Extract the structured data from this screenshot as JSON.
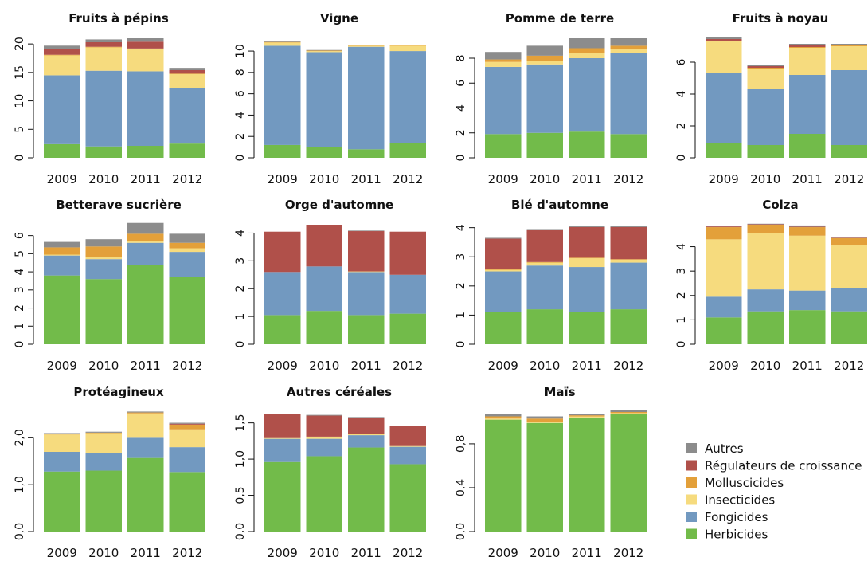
{
  "colors": {
    "Autres": "#8c8c8c",
    "Régulateurs de croissance": "#b0504a",
    "Molluscicides": "#e3a03a",
    "Insecticides": "#f6db7e",
    "Fongicides": "#7299c0",
    "Herbicides": "#72bb4a"
  },
  "legend": [
    "Autres",
    "Régulateurs de croissance",
    "Molluscicides",
    "Insecticides",
    "Fongicides",
    "Herbicides"
  ],
  "chart_data": [
    {
      "type": "bar",
      "stacked": true,
      "title": "Fruits à pépins",
      "categories": [
        "2009",
        "2010",
        "2011",
        "2012"
      ],
      "ylim": [
        0,
        21
      ],
      "yticks": [
        "0",
        "5",
        "10",
        "15",
        "20"
      ],
      "ytick_values": [
        0,
        5,
        10,
        15,
        20
      ],
      "series": [
        {
          "name": "Herbicides",
          "values": [
            2.4,
            2.0,
            2.1,
            2.5
          ]
        },
        {
          "name": "Fongicides",
          "values": [
            12.1,
            13.3,
            13.1,
            9.8
          ]
        },
        {
          "name": "Insecticides",
          "values": [
            3.5,
            4.1,
            3.9,
            2.4
          ]
        },
        {
          "name": "Molluscicides",
          "values": [
            0.1,
            0.1,
            0.1,
            0.1
          ]
        },
        {
          "name": "Régulateurs de croissance",
          "values": [
            1.0,
            0.8,
            1.2,
            0.6
          ]
        },
        {
          "name": "Autres",
          "values": [
            0.6,
            0.5,
            0.6,
            0.4
          ]
        }
      ]
    },
    {
      "type": "bar",
      "stacked": true,
      "title": "Vigne",
      "categories": [
        "2009",
        "2010",
        "2011",
        "2012"
      ],
      "ylim": [
        0,
        11.2
      ],
      "yticks": [
        "0",
        "2",
        "4",
        "6",
        "8",
        "10"
      ],
      "ytick_values": [
        0,
        2,
        4,
        6,
        8,
        10
      ],
      "series": [
        {
          "name": "Herbicides",
          "values": [
            1.2,
            1.0,
            0.8,
            1.4
          ]
        },
        {
          "name": "Fongicides",
          "values": [
            9.3,
            8.9,
            9.6,
            8.6
          ]
        },
        {
          "name": "Insecticides",
          "values": [
            0.3,
            0.1,
            0.1,
            0.5
          ]
        },
        {
          "name": "Molluscicides",
          "values": [
            0.05,
            0.05,
            0.05,
            0.05
          ]
        },
        {
          "name": "Régulateurs de croissance",
          "values": [
            0,
            0,
            0,
            0
          ]
        },
        {
          "name": "Autres",
          "values": [
            0.05,
            0.05,
            0.05,
            0.05
          ]
        }
      ]
    },
    {
      "type": "bar",
      "stacked": true,
      "title": "Pomme de terre",
      "categories": [
        "2009",
        "2010",
        "2011",
        "2012"
      ],
      "ylim": [
        0,
        9.6
      ],
      "yticks": [
        "0",
        "2",
        "4",
        "6",
        "8"
      ],
      "ytick_values": [
        0,
        2,
        4,
        6,
        8
      ],
      "series": [
        {
          "name": "Herbicides",
          "values": [
            1.9,
            2.0,
            2.1,
            1.9
          ]
        },
        {
          "name": "Fongicides",
          "values": [
            5.4,
            5.5,
            5.9,
            6.5
          ]
        },
        {
          "name": "Insecticides",
          "values": [
            0.4,
            0.3,
            0.4,
            0.3
          ]
        },
        {
          "name": "Molluscicides",
          "values": [
            0.2,
            0.4,
            0.4,
            0.3
          ]
        },
        {
          "name": "Régulateurs de croissance",
          "values": [
            0,
            0,
            0,
            0
          ]
        },
        {
          "name": "Autres",
          "values": [
            0.6,
            0.8,
            0.8,
            0.6
          ]
        }
      ]
    },
    {
      "type": "bar",
      "stacked": true,
      "title": "Fruits à noyau",
      "categories": [
        "2009",
        "2010",
        "2011",
        "2012"
      ],
      "ylim": [
        0,
        7.5
      ],
      "yticks": [
        "0",
        "2",
        "4",
        "6"
      ],
      "ytick_values": [
        0,
        2,
        4,
        6
      ],
      "series": [
        {
          "name": "Herbicides",
          "values": [
            0.9,
            0.8,
            1.5,
            0.8
          ]
        },
        {
          "name": "Fongicides",
          "values": [
            4.4,
            3.5,
            3.7,
            4.7
          ]
        },
        {
          "name": "Insecticides",
          "values": [
            2.0,
            1.3,
            1.7,
            1.5
          ]
        },
        {
          "name": "Molluscicides",
          "values": [
            0.05,
            0.05,
            0.05,
            0.05
          ]
        },
        {
          "name": "Régulateurs de croissance",
          "values": [
            0.1,
            0.1,
            0.1,
            0.05
          ]
        },
        {
          "name": "Autres",
          "values": [
            0.1,
            0.05,
            0.1,
            0.05
          ]
        }
      ]
    },
    {
      "type": "bar",
      "stacked": true,
      "title": "Betterave sucrière",
      "categories": [
        "2009",
        "2010",
        "2011",
        "2012"
      ],
      "ylim": [
        0,
        6.6
      ],
      "yticks": [
        "0",
        "1",
        "2",
        "3",
        "4",
        "5",
        "6"
      ],
      "ytick_values": [
        0,
        1,
        2,
        3,
        4,
        5,
        6
      ],
      "series": [
        {
          "name": "Herbicides",
          "values": [
            3.8,
            3.6,
            4.4,
            3.7
          ]
        },
        {
          "name": "Fongicides",
          "values": [
            1.1,
            1.1,
            1.2,
            1.4
          ]
        },
        {
          "name": "Insecticides",
          "values": [
            0.05,
            0.1,
            0.1,
            0.2
          ]
        },
        {
          "name": "Molluscicides",
          "values": [
            0.4,
            0.6,
            0.4,
            0.3
          ]
        },
        {
          "name": "Régulateurs de croissance",
          "values": [
            0,
            0,
            0,
            0
          ]
        },
        {
          "name": "Autres",
          "values": [
            0.3,
            0.4,
            0.6,
            0.5
          ]
        }
      ]
    },
    {
      "type": "bar",
      "stacked": true,
      "title": "Orge d'automne",
      "categories": [
        "2009",
        "2010",
        "2011",
        "2012"
      ],
      "ylim": [
        0,
        4.3
      ],
      "yticks": [
        "0",
        "1",
        "2",
        "3",
        "4"
      ],
      "ytick_values": [
        0,
        1,
        2,
        3,
        4
      ],
      "series": [
        {
          "name": "Herbicides",
          "values": [
            1.05,
            1.2,
            1.05,
            1.1
          ]
        },
        {
          "name": "Fongicides",
          "values": [
            1.55,
            1.6,
            1.55,
            1.4
          ]
        },
        {
          "name": "Insecticides",
          "values": [
            0,
            0,
            0.02,
            0
          ]
        },
        {
          "name": "Molluscicides",
          "values": [
            0,
            0,
            0,
            0
          ]
        },
        {
          "name": "Régulateurs de croissance",
          "values": [
            1.45,
            1.5,
            1.45,
            1.55
          ]
        },
        {
          "name": "Autres",
          "values": [
            0,
            0,
            0.02,
            0
          ]
        }
      ]
    },
    {
      "type": "bar",
      "stacked": true,
      "title": "Blé d'automne",
      "categories": [
        "2009",
        "2010",
        "2011",
        "2012"
      ],
      "ylim": [
        0,
        4.1
      ],
      "yticks": [
        "0",
        "1",
        "2",
        "3",
        "4"
      ],
      "ytick_values": [
        0,
        1,
        2,
        3,
        4
      ],
      "series": [
        {
          "name": "Herbicides",
          "values": [
            1.1,
            1.2,
            1.1,
            1.2
          ]
        },
        {
          "name": "Fongicides",
          "values": [
            1.4,
            1.5,
            1.55,
            1.6
          ]
        },
        {
          "name": "Insecticides",
          "values": [
            0.05,
            0.1,
            0.3,
            0.1
          ]
        },
        {
          "name": "Molluscicides",
          "values": [
            0.02,
            0.02,
            0.02,
            0.02
          ]
        },
        {
          "name": "Régulateurs de croissance",
          "values": [
            1.05,
            1.1,
            1.05,
            1.1
          ]
        },
        {
          "name": "Autres",
          "values": [
            0.03,
            0.03,
            0.03,
            0.03
          ]
        }
      ]
    },
    {
      "type": "bar",
      "stacked": true,
      "title": "Colza",
      "categories": [
        "2009",
        "2010",
        "2011",
        "2012"
      ],
      "ylim": [
        0,
        4.9
      ],
      "yticks": [
        "0",
        "1",
        "2",
        "3",
        "4"
      ],
      "ytick_values": [
        0,
        1,
        2,
        3,
        4
      ],
      "series": [
        {
          "name": "Herbicides",
          "values": [
            1.1,
            1.35,
            1.4,
            1.35
          ]
        },
        {
          "name": "Fongicides",
          "values": [
            0.85,
            0.9,
            0.8,
            0.95
          ]
        },
        {
          "name": "Insecticides",
          "values": [
            2.35,
            2.3,
            2.25,
            1.75
          ]
        },
        {
          "name": "Molluscicides",
          "values": [
            0.5,
            0.35,
            0.35,
            0.3
          ]
        },
        {
          "name": "Régulateurs de croissance",
          "values": [
            0.03,
            0.02,
            0.02,
            0.02
          ]
        },
        {
          "name": "Autres",
          "values": [
            0.02,
            0.02,
            0.05,
            0.02
          ]
        }
      ]
    },
    {
      "type": "bar",
      "stacked": true,
      "title": "Protéagineux",
      "categories": [
        "2009",
        "2010",
        "2011",
        "2012"
      ],
      "ylim": [
        0,
        2.55
      ],
      "yticks": [
        "0,0",
        "1,0",
        "2,0"
      ],
      "ytick_values": [
        0,
        1,
        2
      ],
      "series": [
        {
          "name": "Herbicides",
          "values": [
            1.28,
            1.3,
            1.57,
            1.27
          ]
        },
        {
          "name": "Fongicides",
          "values": [
            0.42,
            0.38,
            0.43,
            0.53
          ]
        },
        {
          "name": "Insecticides",
          "values": [
            0.37,
            0.42,
            0.52,
            0.38
          ]
        },
        {
          "name": "Molluscicides",
          "values": [
            0.01,
            0.01,
            0.02,
            0.1
          ]
        },
        {
          "name": "Régulateurs de croissance",
          "values": [
            0,
            0,
            0,
            0.02
          ]
        },
        {
          "name": "Autres",
          "values": [
            0.02,
            0.02,
            0.02,
            0.02
          ]
        }
      ]
    },
    {
      "type": "bar",
      "stacked": true,
      "title": "Autres céréales",
      "categories": [
        "2009",
        "2010",
        "2011",
        "2012"
      ],
      "ylim": [
        0,
        1.65
      ],
      "yticks": [
        "0,0",
        "0,5",
        "1,0",
        "1,5"
      ],
      "ytick_values": [
        0,
        0.5,
        1,
        1.5
      ],
      "series": [
        {
          "name": "Herbicides",
          "values": [
            0.96,
            1.04,
            1.16,
            0.93
          ]
        },
        {
          "name": "Fongicides",
          "values": [
            0.32,
            0.24,
            0.17,
            0.24
          ]
        },
        {
          "name": "Insecticides",
          "values": [
            0.01,
            0.03,
            0.02,
            0.01
          ]
        },
        {
          "name": "Molluscicides",
          "values": [
            0,
            0,
            0,
            0
          ]
        },
        {
          "name": "Régulateurs de croissance",
          "values": [
            0.33,
            0.29,
            0.22,
            0.28
          ]
        },
        {
          "name": "Autres",
          "values": [
            0,
            0.01,
            0.01,
            0
          ]
        }
      ]
    },
    {
      "type": "bar",
      "stacked": true,
      "title": "Maïs",
      "categories": [
        "2009",
        "2010",
        "2011",
        "2012"
      ],
      "ylim": [
        0,
        1.09
      ],
      "yticks": [
        "0,0",
        "0,4",
        "0,8"
      ],
      "ytick_values": [
        0,
        0.4,
        0.8
      ],
      "series": [
        {
          "name": "Herbicides",
          "values": [
            1.02,
            0.99,
            1.04,
            1.07
          ]
        },
        {
          "name": "Fongicides",
          "values": [
            0,
            0,
            0,
            0
          ]
        },
        {
          "name": "Insecticides",
          "values": [
            0.01,
            0.01,
            0.01,
            0.01
          ]
        },
        {
          "name": "Molluscicides",
          "values": [
            0.02,
            0.03,
            0.01,
            0.01
          ]
        },
        {
          "name": "Régulateurs de croissance",
          "values": [
            0,
            0,
            0,
            0
          ]
        },
        {
          "name": "Autres",
          "values": [
            0.02,
            0.02,
            0.01,
            0.02
          ]
        }
      ]
    }
  ]
}
